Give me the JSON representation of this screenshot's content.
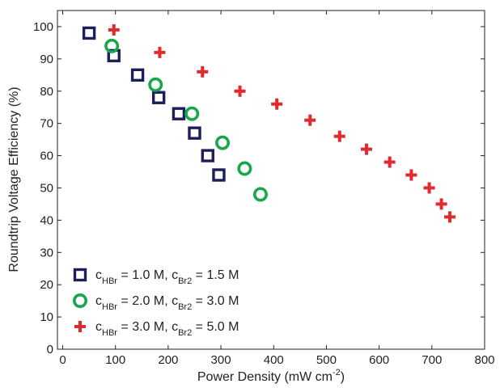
{
  "chart_data": {
    "type": "scatter",
    "xlabel": {
      "text": "Power Density (mW cm",
      "sup": "-2",
      "close": ")"
    },
    "ylabel": "Roundtrip Voltage Efficiency (%)",
    "xlim": [
      -10,
      800
    ],
    "ylim": [
      0,
      105
    ],
    "xticks": [
      0,
      100,
      200,
      300,
      400,
      500,
      600,
      700,
      800
    ],
    "yticks": [
      0,
      10,
      20,
      30,
      40,
      50,
      60,
      70,
      80,
      90,
      100
    ],
    "legend_position": "bottom-left",
    "series": [
      {
        "marker": "square",
        "color": "#1c1f5a",
        "legend": {
          "c1": "c",
          "s1": "HBr",
          "m1": " = 1.0 M, c",
          "s2": "Br2",
          "m2": " = 1.5 M"
        },
        "points": [
          {
            "x": 50,
            "y": 98
          },
          {
            "x": 97,
            "y": 91
          },
          {
            "x": 142,
            "y": 85
          },
          {
            "x": 182,
            "y": 78
          },
          {
            "x": 220,
            "y": 73
          },
          {
            "x": 250,
            "y": 67
          },
          {
            "x": 275,
            "y": 60
          },
          {
            "x": 296,
            "y": 54
          }
        ]
      },
      {
        "marker": "circle",
        "color": "#1aa64a",
        "legend": {
          "c1": "c",
          "s1": "HBr",
          "m1": " = 2.0 M, c",
          "s2": "Br2",
          "m2": " = 3.0 M"
        },
        "points": [
          {
            "x": 93,
            "y": 94
          },
          {
            "x": 176,
            "y": 82
          },
          {
            "x": 245,
            "y": 73
          },
          {
            "x": 303,
            "y": 64
          },
          {
            "x": 345,
            "y": 56
          },
          {
            "x": 375,
            "y": 48
          }
        ]
      },
      {
        "marker": "plus",
        "color": "#e02a2f",
        "legend": {
          "c1": "c",
          "s1": "HBr",
          "m1": " = 3.0 M, c",
          "s2": "Br2",
          "m2": " = 5.0 M"
        },
        "points": [
          {
            "x": 97,
            "y": 99
          },
          {
            "x": 184,
            "y": 92
          },
          {
            "x": 265,
            "y": 86
          },
          {
            "x": 336,
            "y": 80
          },
          {
            "x": 406,
            "y": 76
          },
          {
            "x": 469,
            "y": 71
          },
          {
            "x": 525,
            "y": 66
          },
          {
            "x": 576,
            "y": 62
          },
          {
            "x": 620,
            "y": 58
          },
          {
            "x": 661,
            "y": 54
          },
          {
            "x": 695,
            "y": 50
          },
          {
            "x": 718,
            "y": 45
          },
          {
            "x": 734,
            "y": 41
          }
        ]
      }
    ]
  }
}
